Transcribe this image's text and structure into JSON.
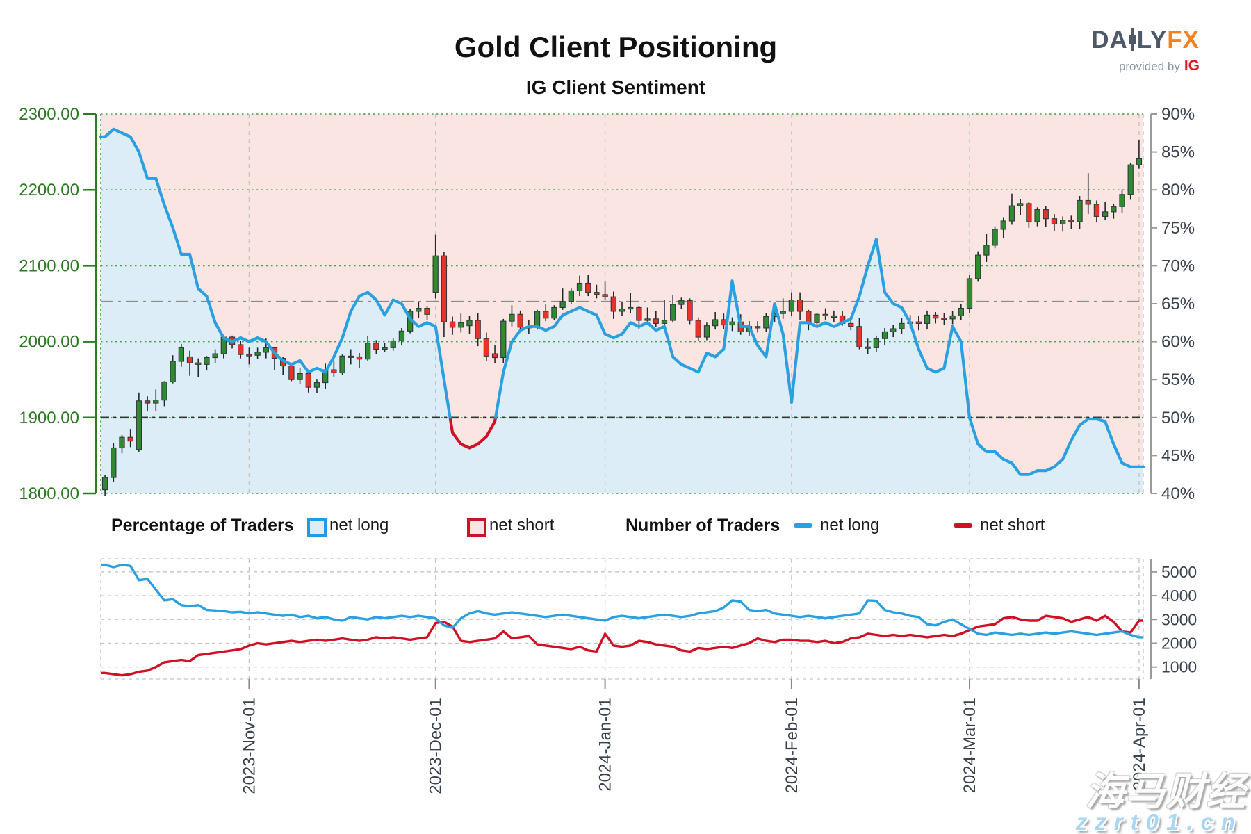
{
  "header": {
    "title": "Gold Client Positioning",
    "subtitle": "IG Client Sentiment"
  },
  "logo": {
    "da": "DA",
    "ly": "LY",
    "fx": "FX",
    "provided_by": "provided by",
    "ig": "IG"
  },
  "legend": {
    "pct_label": "Percentage of Traders",
    "num_label": "Number of Traders",
    "pct_net_long": "net long",
    "pct_net_short": "net short",
    "num_net_long": "net long",
    "num_net_short": "net short"
  },
  "watermark": {
    "line1": "海马财经",
    "line2": "zzrt01.cn"
  },
  "colors": {
    "sentiment_blue": "#2ba0e0",
    "sentiment_red": "#cf1126",
    "fill_blue": "#dcedf8",
    "fill_pink": "#fae5e2",
    "candle_up": "#2f8b2f",
    "candle_down": "#e8332a",
    "candle_stroke": "#33383d",
    "wick": "#23282d",
    "price_axis_green": "#2c7a21",
    "pct_axis_text": "#39424f",
    "grid_green": "#43a047",
    "grid_gray": "#c4c4c4",
    "ref_gray": "#8a8a8a",
    "ref_dark": "#1f1f1f",
    "count_blue": "#2ba0e0",
    "count_red": "#cf1126"
  },
  "chart_data": [
    {
      "type": "candlestick+line",
      "title": "IG Client Sentiment",
      "price_axis": {
        "ticks": [
          2300,
          2200,
          2100,
          2000,
          1900,
          1800
        ],
        "range": [
          1800,
          2300
        ]
      },
      "percent_axis": {
        "ticks": [
          90,
          85,
          80,
          75,
          70,
          65,
          60,
          55,
          50,
          45,
          40
        ],
        "range": [
          40,
          90
        ]
      },
      "x_tick_labels": [
        "2023-Nov-01",
        "2023-Dec-01",
        "2024-Jan-01",
        "2024-Feb-01",
        "2024-Mar-01",
        "2024-Apr-01"
      ],
      "x_tick_indices": [
        17,
        39,
        59,
        81,
        102,
        122
      ],
      "reference_lines": {
        "gray_dashdot_pct": 65.3,
        "dark_threshold_pct": 50
      },
      "legend_position": "below",
      "grid": true,
      "candles_ohlc": [
        [
          1805,
          1824,
          1797,
          1821
        ],
        [
          1821,
          1866,
          1815,
          1860
        ],
        [
          1860,
          1877,
          1853,
          1874
        ],
        [
          1874,
          1885,
          1861,
          1869
        ],
        [
          1858,
          1933,
          1855,
          1922
        ],
        [
          1922,
          1928,
          1908,
          1919
        ],
        [
          1919,
          1937,
          1908,
          1923
        ],
        [
          1923,
          1948,
          1915,
          1947
        ],
        [
          1947,
          1982,
          1945,
          1974
        ],
        [
          1974,
          1997,
          1967,
          1992
        ],
        [
          1980,
          1988,
          1955,
          1972
        ],
        [
          1972,
          1978,
          1953,
          1970
        ],
        [
          1970,
          1981,
          1962,
          1979
        ],
        [
          1979,
          1990,
          1972,
          1984
        ],
        [
          1984,
          2009,
          1978,
          2006
        ],
        [
          2006,
          2008,
          1991,
          1996
        ],
        [
          1996,
          2001,
          1978,
          1983
        ],
        [
          1983,
          1992,
          1970,
          1982
        ],
        [
          1982,
          1992,
          1977,
          1986
        ],
        [
          1986,
          2004,
          1978,
          1992
        ],
        [
          1992,
          1993,
          1963,
          1978
        ],
        [
          1978,
          1980,
          1956,
          1968
        ],
        [
          1968,
          1972,
          1948,
          1950
        ],
        [
          1950,
          1965,
          1944,
          1958
        ],
        [
          1958,
          1962,
          1933,
          1940
        ],
        [
          1940,
          1950,
          1932,
          1946
        ],
        [
          1946,
          1971,
          1938,
          1963
        ],
        [
          1963,
          1975,
          1954,
          1959
        ],
        [
          1959,
          1983,
          1956,
          1981
        ],
        [
          1981,
          1990,
          1970,
          1980
        ],
        [
          1980,
          1985,
          1965,
          1977
        ],
        [
          1977,
          2007,
          1975,
          1998
        ],
        [
          1998,
          2002,
          1984,
          1990
        ],
        [
          1990,
          1998,
          1986,
          1992
        ],
        [
          1992,
          2004,
          1988,
          2001
        ],
        [
          2001,
          2018,
          1995,
          2014
        ],
        [
          2014,
          2043,
          2011,
          2040
        ],
        [
          2040,
          2052,
          2031,
          2044
        ],
        [
          2044,
          2047,
          2029,
          2036
        ],
        [
          2065,
          2141,
          2057,
          2113
        ],
        [
          2113,
          2118,
          2006,
          2026
        ],
        [
          2026,
          2033,
          2009,
          2019
        ],
        [
          2019,
          2037,
          2012,
          2025
        ],
        [
          2021,
          2034,
          2010,
          2028
        ],
        [
          2028,
          2038,
          1994,
          2004
        ],
        [
          2004,
          2012,
          1975,
          1981
        ],
        [
          1984,
          1995,
          1972,
          1979
        ],
        [
          1979,
          2030,
          1972,
          2027
        ],
        [
          2027,
          2048,
          2020,
          2036
        ],
        [
          2036,
          2041,
          2013,
          2019
        ],
        [
          2019,
          2029,
          2010,
          2020
        ],
        [
          2020,
          2042,
          2016,
          2040
        ],
        [
          2040,
          2049,
          2027,
          2031
        ],
        [
          2031,
          2048,
          2028,
          2045
        ],
        [
          2045,
          2070,
          2042,
          2053
        ],
        [
          2053,
          2070,
          2050,
          2067
        ],
        [
          2067,
          2087,
          2060,
          2077
        ],
        [
          2077,
          2088,
          2060,
          2065
        ],
        [
          2065,
          2075,
          2057,
          2062
        ],
        [
          2062,
          2079,
          2055,
          2059
        ],
        [
          2059,
          2066,
          2030,
          2040
        ],
        [
          2040,
          2053,
          2034,
          2043
        ],
        [
          2043,
          2064,
          2038,
          2045
        ],
        [
          2045,
          2047,
          2017,
          2028
        ],
        [
          2028,
          2045,
          2022,
          2030
        ],
        [
          2030,
          2040,
          2019,
          2024
        ],
        [
          2024,
          2055,
          2021,
          2028
        ],
        [
          2028,
          2062,
          2025,
          2049
        ],
        [
          2049,
          2058,
          2043,
          2054
        ],
        [
          2054,
          2057,
          2023,
          2028
        ],
        [
          2028,
          2032,
          2001,
          2006
        ],
        [
          2006,
          2025,
          2002,
          2021
        ],
        [
          2021,
          2039,
          2016,
          2029
        ],
        [
          2029,
          2037,
          2017,
          2022
        ],
        [
          2022,
          2032,
          2014,
          2026
        ],
        [
          2026,
          2036,
          2009,
          2013
        ],
        [
          2013,
          2027,
          2008,
          2020
        ],
        [
          2020,
          2027,
          2012,
          2018
        ],
        [
          2018,
          2038,
          2013,
          2033
        ],
        [
          2033,
          2044,
          2026,
          2037
        ],
        [
          2037,
          2057,
          2030,
          2040
        ],
        [
          2040,
          2065,
          2034,
          2055
        ],
        [
          2055,
          2065,
          2029,
          2040
        ],
        [
          2040,
          2042,
          2015,
          2025
        ],
        [
          2025,
          2038,
          2020,
          2036
        ],
        [
          2036,
          2044,
          2029,
          2034
        ],
        [
          2034,
          2041,
          2026,
          2034
        ],
        [
          2034,
          2040,
          2021,
          2024
        ],
        [
          2024,
          2033,
          2015,
          2020
        ],
        [
          2020,
          2031,
          1990,
          1993
        ],
        [
          1993,
          2004,
          1984,
          1992
        ],
        [
          1992,
          2008,
          1986,
          2004
        ],
        [
          2004,
          2018,
          1995,
          2013
        ],
        [
          2013,
          2022,
          2006,
          2017
        ],
        [
          2017,
          2031,
          2010,
          2024
        ],
        [
          2024,
          2035,
          2018,
          2026
        ],
        [
          2026,
          2034,
          2015,
          2024
        ],
        [
          2024,
          2041,
          2016,
          2035
        ],
        [
          2035,
          2039,
          2024,
          2031
        ],
        [
          2031,
          2038,
          2022,
          2030
        ],
        [
          2030,
          2040,
          2023,
          2034
        ],
        [
          2034,
          2050,
          2028,
          2044
        ],
        [
          2044,
          2088,
          2038,
          2083
        ],
        [
          2083,
          2119,
          2079,
          2114
        ],
        [
          2114,
          2142,
          2105,
          2127
        ],
        [
          2127,
          2152,
          2123,
          2148
        ],
        [
          2148,
          2164,
          2136,
          2159
        ],
        [
          2159,
          2195,
          2154,
          2179
        ],
        [
          2179,
          2188,
          2167,
          2182
        ],
        [
          2182,
          2184,
          2150,
          2158
        ],
        [
          2158,
          2177,
          2152,
          2174
        ],
        [
          2174,
          2179,
          2151,
          2162
        ],
        [
          2162,
          2168,
          2146,
          2155
        ],
        [
          2155,
          2165,
          2145,
          2160
        ],
        [
          2160,
          2166,
          2148,
          2158
        ],
        [
          2158,
          2192,
          2148,
          2186
        ],
        [
          2186,
          2222,
          2168,
          2181
        ],
        [
          2181,
          2186,
          2157,
          2165
        ],
        [
          2165,
          2184,
          2160,
          2171
        ],
        [
          2171,
          2182,
          2162,
          2178
        ],
        [
          2178,
          2200,
          2170,
          2194
        ],
        [
          2194,
          2236,
          2187,
          2233
        ],
        [
          2233,
          2266,
          2228,
          2241
        ]
      ],
      "net_long_pct": [
        87,
        88,
        87.5,
        87,
        85,
        81.5,
        81.5,
        78,
        75,
        71.5,
        71.5,
        67,
        66,
        62.5,
        60.5,
        60,
        60.5,
        60,
        60.5,
        60,
        58.5,
        57.5,
        57,
        57.5,
        56,
        56.5,
        56,
        58,
        60.5,
        64,
        66,
        66.5,
        65.5,
        63.5,
        65.5,
        65,
        63,
        62,
        62.5,
        62,
        55,
        48,
        46.5,
        46,
        46.5,
        47.5,
        49.5,
        56,
        60,
        61.5,
        62,
        62,
        61.5,
        62,
        63.5,
        64,
        64.5,
        64,
        63.5,
        61,
        60.5,
        61,
        62.5,
        62,
        62.5,
        61.5,
        62,
        58,
        57,
        56.5,
        56,
        58.5,
        58,
        59,
        68,
        62,
        62,
        59.5,
        58,
        65,
        61,
        52,
        62.5,
        62.5,
        62,
        62.5,
        62,
        62.5,
        63,
        66,
        70,
        73.5,
        66.5,
        65,
        64.5,
        62.5,
        59,
        56.5,
        56,
        56.5,
        62,
        60,
        50,
        46.5,
        45.5,
        45.5,
        44.5,
        44,
        42.5,
        42.5,
        43,
        43,
        43.5,
        44.5,
        47,
        49,
        49.8,
        49.8,
        49.5,
        46.5,
        44,
        43.5,
        43.5
      ]
    },
    {
      "type": "line",
      "y_axis": {
        "ticks": [
          5000,
          4000,
          3000,
          2000,
          1000
        ]
      },
      "series": [
        {
          "name": "net long",
          "values": [
            5300,
            5200,
            5300,
            5250,
            4650,
            4700,
            4250,
            3800,
            3850,
            3600,
            3550,
            3600,
            3400,
            3380,
            3350,
            3300,
            3320,
            3250,
            3300,
            3250,
            3200,
            3150,
            3200,
            3100,
            3150,
            3050,
            3100,
            3000,
            2950,
            3100,
            3050,
            3000,
            3100,
            3050,
            3100,
            3150,
            3100,
            3150,
            3100,
            3050,
            2750,
            2650,
            3050,
            3250,
            3350,
            3250,
            3200,
            3250,
            3300,
            3250,
            3200,
            3150,
            3100,
            3150,
            3200,
            3150,
            3100,
            3050,
            3000,
            2950,
            3100,
            3150,
            3100,
            3050,
            3100,
            3150,
            3200,
            3150,
            3100,
            3150,
            3250,
            3300,
            3350,
            3500,
            3800,
            3750,
            3400,
            3350,
            3400,
            3250,
            3200,
            3150,
            3100,
            3150,
            3100,
            3050,
            3100,
            3150,
            3200,
            3250,
            3800,
            3780,
            3400,
            3300,
            3250,
            3150,
            3100,
            2800,
            2750,
            2900,
            3000,
            2800,
            2600,
            2400,
            2350,
            2450,
            2400,
            2350,
            2400,
            2350,
            2400,
            2450,
            2400,
            2450,
            2500,
            2450,
            2400,
            2350,
            2400,
            2450,
            2500,
            2350,
            2250
          ]
        },
        {
          "name": "net short",
          "values": [
            750,
            700,
            650,
            700,
            800,
            850,
            1000,
            1200,
            1250,
            1300,
            1250,
            1500,
            1550,
            1600,
            1650,
            1700,
            1750,
            1900,
            2000,
            1950,
            2000,
            2050,
            2100,
            2050,
            2100,
            2150,
            2100,
            2150,
            2200,
            2150,
            2100,
            2150,
            2250,
            2200,
            2250,
            2200,
            2150,
            2200,
            2250,
            2850,
            2900,
            2700,
            2100,
            2050,
            2100,
            2150,
            2200,
            2500,
            2200,
            2250,
            2300,
            1950,
            1900,
            1850,
            1800,
            1750,
            1850,
            1700,
            1650,
            2400,
            1900,
            1850,
            1900,
            2100,
            2050,
            1950,
            1900,
            1850,
            1700,
            1650,
            1800,
            1750,
            1800,
            1850,
            1800,
            1900,
            2000,
            2200,
            2100,
            2050,
            2150,
            2150,
            2100,
            2100,
            2050,
            2100,
            2000,
            2050,
            2200,
            2250,
            2400,
            2350,
            2300,
            2350,
            2300,
            2350,
            2300,
            2250,
            2300,
            2350,
            2300,
            2400,
            2550,
            2700,
            2750,
            2800,
            3050,
            3100,
            3000,
            2950,
            2950,
            3150,
            3100,
            3050,
            2900,
            3000,
            3100,
            2950,
            3150,
            2900,
            2500,
            2450,
            2950
          ]
        }
      ]
    }
  ]
}
